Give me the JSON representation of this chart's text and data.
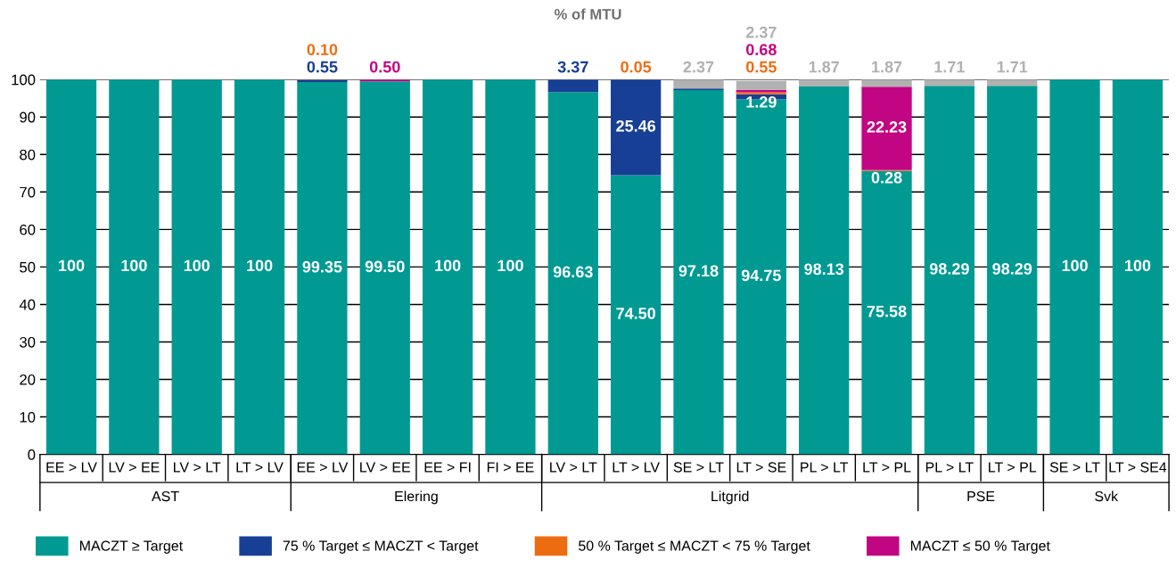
{
  "chart_data": {
    "type": "bar",
    "stacked": true,
    "title": "% of MTU",
    "categories": [
      "EE > LV",
      "LV > EE",
      "LV > LT",
      "LT > LV",
      "EE > LV",
      "LV > EE",
      "EE > FI",
      "FI > EE",
      "LV > LT",
      "LT > LV",
      "SE > LT",
      "LT > SE",
      "PL > LT",
      "LT > PL",
      "PL > LT",
      "LT > PL",
      "SE > LT",
      "LT > SE4"
    ],
    "annotations": [
      "AST",
      "Elering",
      "Litgrid",
      "PSE",
      "Svk"
    ],
    "series": [
      {
        "name": "MACZT ≥ Target",
        "color": "#009a93",
        "values": [
          100,
          100,
          100,
          100,
          99.35,
          99.5,
          100,
          100,
          96.63,
          74.5,
          97.18,
          94.75,
          98.13,
          75.58,
          98.29,
          98.29,
          100,
          100
        ],
        "value_labels": [
          "100",
          "100",
          "100",
          "100",
          "99.35",
          "99.50",
          "100",
          "100",
          "96.63",
          "74.50",
          "97.18",
          "94.75",
          "98.13",
          "75.58",
          "98.29",
          "98.29",
          "100",
          "100"
        ]
      },
      {
        "name": "75 % Target ≤ MACZT < Target",
        "color": "#173f95",
        "values": [
          0,
          0,
          0,
          0,
          0.55,
          0,
          0,
          0,
          3.37,
          25.46,
          0.45,
          1.29,
          0,
          0,
          0,
          0,
          0,
          0
        ],
        "value_labels": [
          null,
          null,
          null,
          null,
          "0.55",
          null,
          null,
          null,
          "3.37",
          "25.46",
          null,
          "1.29",
          null,
          null,
          null,
          null,
          null,
          null
        ]
      },
      {
        "name": "50 % Target ≤ MACZT < 75 % Target",
        "color": "#ee6c11",
        "values": [
          0,
          0,
          0,
          0,
          0.1,
          0,
          0,
          0,
          0,
          0.05,
          0,
          0.55,
          0,
          0.28,
          0,
          0,
          0,
          0
        ],
        "value_labels": [
          null,
          null,
          null,
          null,
          "0.10",
          null,
          null,
          null,
          null,
          "0.05",
          null,
          "0.55",
          null,
          "0.28",
          null,
          null,
          null,
          null
        ]
      },
      {
        "name": "MACZT ≤ 50 % Target",
        "color": "#c20582",
        "values": [
          0,
          0,
          0,
          0,
          0,
          0.5,
          0,
          0,
          0,
          0,
          0,
          0.68,
          0,
          22.23,
          0,
          0,
          0,
          0
        ],
        "value_labels": [
          null,
          null,
          null,
          null,
          null,
          "0.50",
          null,
          null,
          null,
          null,
          null,
          "0.68",
          null,
          "22.23",
          null,
          null,
          null,
          null
        ]
      },
      {
        "color": "#b1b1b1",
        "values": [
          0,
          0,
          0,
          0,
          0,
          0,
          0,
          0,
          0,
          0,
          2.37,
          2.37,
          1.87,
          1.87,
          1.71,
          1.71,
          0,
          0
        ],
        "value_labels": [
          null,
          null,
          null,
          null,
          null,
          null,
          null,
          null,
          null,
          null,
          "2.37",
          "2.37",
          "1.87",
          "1.87",
          "1.71",
          "1.71",
          null,
          null
        ]
      }
    ],
    "ylim": [
      0,
      100
    ],
    "yticks": [
      0,
      10,
      20,
      30,
      40,
      50,
      60,
      70,
      80,
      90,
      100
    ],
    "grid": "y",
    "legend": "bottom"
  }
}
